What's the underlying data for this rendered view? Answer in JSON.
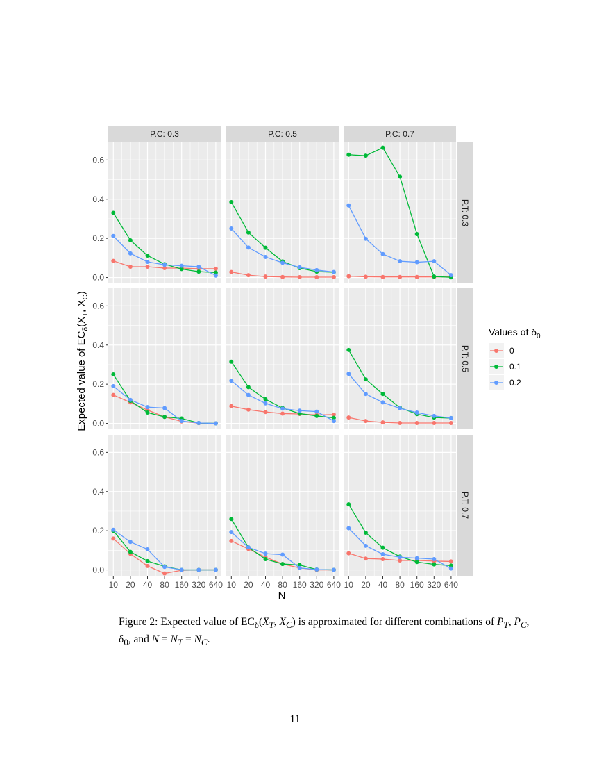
{
  "chart_data": {
    "type": "line",
    "facet_layout": "grid",
    "ylabel_prefix": "Expected value of EC",
    "ylabel_sub": "δ",
    "ylabel_suffix": "(X",
    "xlabel": "N",
    "x_categories": [
      "10",
      "20",
      "40",
      "80",
      "160",
      "320",
      "640"
    ],
    "ylim": [
      -0.03,
      0.69
    ],
    "yticks": [
      0.0,
      0.2,
      0.4,
      0.6
    ],
    "ytick_labels": [
      "0.0",
      "0.2",
      "0.4",
      "0.6"
    ],
    "column_facets": [
      "P.C: 0.3",
      "P.C: 0.5",
      "P.C: 0.7"
    ],
    "row_facets": [
      "P.T: 0.3",
      "P.T: 0.5",
      "P.T: 0.7"
    ],
    "legend": {
      "title_prefix": "Values of δ",
      "title_sub": "0",
      "position": "right",
      "entries": [
        "0",
        "0.1",
        "0.2"
      ]
    },
    "series_colors": [
      "#F8766D",
      "#00BA38",
      "#619CFF"
    ],
    "grid": true,
    "panels": [
      {
        "row": 0,
        "col": 0,
        "series": [
          {
            "name": "0",
            "values": [
              0.085,
              0.055,
              0.055,
              0.048,
              0.048,
              0.045,
              0.045
            ]
          },
          {
            "name": "0.1",
            "values": [
              0.33,
              0.19,
              0.112,
              0.068,
              0.043,
              0.03,
              0.025
            ]
          },
          {
            "name": "0.2",
            "values": [
              0.212,
              0.123,
              0.08,
              0.065,
              0.06,
              0.055,
              0.01
            ]
          }
        ]
      },
      {
        "row": 0,
        "col": 1,
        "series": [
          {
            "name": "0",
            "values": [
              0.028,
              0.012,
              0.005,
              0.003,
              0.002,
              0.002,
              0.002
            ]
          },
          {
            "name": "0.1",
            "values": [
              0.385,
              0.23,
              0.152,
              0.082,
              0.048,
              0.03,
              0.027
            ]
          },
          {
            "name": "0.2",
            "values": [
              0.25,
              0.153,
              0.105,
              0.075,
              0.052,
              0.038,
              0.028
            ]
          }
        ]
      },
      {
        "row": 0,
        "col": 2,
        "series": [
          {
            "name": "0",
            "values": [
              0.007,
              0.004,
              0.003,
              0.003,
              0.003,
              0.003,
              0.003
            ]
          },
          {
            "name": "0.1",
            "values": [
              0.627,
              0.622,
              0.663,
              0.515,
              0.222,
              0.005,
              0.001
            ]
          },
          {
            "name": "0.2",
            "values": [
              0.368,
              0.198,
              0.12,
              0.083,
              0.078,
              0.083,
              0.012
            ]
          }
        ]
      },
      {
        "row": 1,
        "col": 0,
        "series": [
          {
            "name": "0",
            "values": [
              0.145,
              0.107,
              0.068,
              0.033,
              0.01,
              0.001,
              0.0
            ]
          },
          {
            "name": "0.1",
            "values": [
              0.25,
              0.115,
              0.055,
              0.033,
              0.025,
              0.002,
              0.0
            ]
          },
          {
            "name": "0.2",
            "values": [
              0.19,
              0.12,
              0.083,
              0.078,
              0.012,
              0.002,
              0.0
            ]
          }
        ]
      },
      {
        "row": 1,
        "col": 1,
        "series": [
          {
            "name": "0",
            "values": [
              0.088,
              0.07,
              0.058,
              0.05,
              0.048,
              0.043,
              0.045
            ]
          },
          {
            "name": "0.1",
            "values": [
              0.315,
              0.185,
              0.123,
              0.078,
              0.05,
              0.038,
              0.028
            ]
          },
          {
            "name": "0.2",
            "values": [
              0.218,
              0.145,
              0.102,
              0.075,
              0.065,
              0.06,
              0.012
            ]
          }
        ]
      },
      {
        "row": 1,
        "col": 2,
        "series": [
          {
            "name": "0",
            "values": [
              0.03,
              0.012,
              0.005,
              0.002,
              0.002,
              0.002,
              0.002
            ]
          },
          {
            "name": "0.1",
            "values": [
              0.375,
              0.225,
              0.15,
              0.08,
              0.047,
              0.03,
              0.027
            ]
          },
          {
            "name": "0.2",
            "values": [
              0.253,
              0.15,
              0.107,
              0.077,
              0.055,
              0.038,
              0.027
            ]
          }
        ]
      },
      {
        "row": 2,
        "col": 0,
        "series": [
          {
            "name": "0",
            "values": [
              0.16,
              0.082,
              0.02,
              -0.018,
              -0.002,
              0.0,
              0.0
            ]
          },
          {
            "name": "0.1",
            "values": [
              0.2,
              0.092,
              0.045,
              0.018,
              0.0,
              0.0,
              0.0
            ]
          },
          {
            "name": "0.2",
            "values": [
              0.205,
              0.143,
              0.105,
              0.015,
              0.0,
              0.0,
              0.0
            ]
          }
        ]
      },
      {
        "row": 2,
        "col": 1,
        "series": [
          {
            "name": "0",
            "values": [
              0.148,
              0.107,
              0.065,
              0.03,
              0.01,
              0.0,
              0.0
            ]
          },
          {
            "name": "0.1",
            "values": [
              0.26,
              0.115,
              0.055,
              0.03,
              0.025,
              0.002,
              0.0
            ]
          },
          {
            "name": "0.2",
            "values": [
              0.193,
              0.115,
              0.083,
              0.078,
              0.01,
              0.002,
              0.0
            ]
          }
        ]
      },
      {
        "row": 2,
        "col": 2,
        "series": [
          {
            "name": "0",
            "values": [
              0.085,
              0.058,
              0.055,
              0.048,
              0.048,
              0.045,
              0.043
            ]
          },
          {
            "name": "0.1",
            "values": [
              0.335,
              0.19,
              0.113,
              0.068,
              0.04,
              0.028,
              0.022
            ]
          },
          {
            "name": "0.2",
            "values": [
              0.213,
              0.123,
              0.08,
              0.065,
              0.06,
              0.055,
              0.007
            ]
          }
        ]
      }
    ]
  },
  "caption": {
    "label": "Figure 2:",
    "before": "Expected value of EC",
    "after": " is approximated for different combinations of ",
    "line2": "and "
  },
  "page_number": "11"
}
